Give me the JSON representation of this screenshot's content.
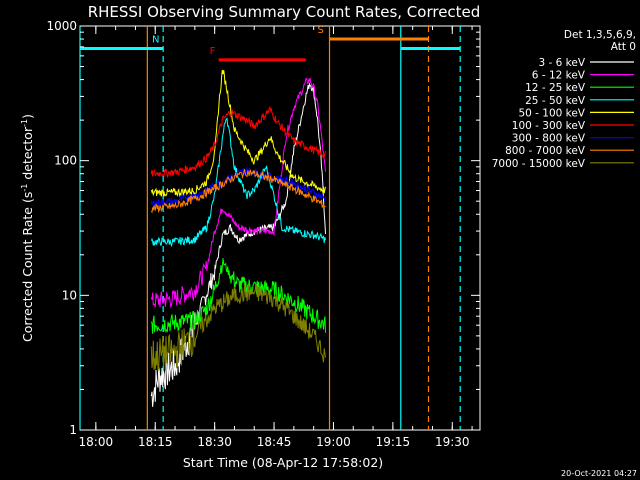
{
  "chart_data": {
    "type": "line",
    "title": "RHESSI Observing Summary Count Rates, Corrected",
    "xlabel": "Start Time (08-Apr-12 17:58:02)",
    "ylabel": "Corrected Count Rate (s⁻¹ detector⁻¹)",
    "ylabel_parts": {
      "main": "Corrected Count Rate (s",
      "sup1": "-1",
      "mid": " detector",
      "sup2": "-1",
      "end": ")"
    },
    "yscale": "log",
    "ylim": [
      1,
      1000
    ],
    "xlim": [
      "17:56:00",
      "19:37:00"
    ],
    "xticks": [
      "18:00",
      "18:15",
      "18:30",
      "18:45",
      "19:00",
      "19:15",
      "19:30"
    ],
    "yticks": [
      "1",
      "10",
      "100",
      "1000"
    ],
    "legend_header": [
      "Det 1,3,5,6,9,",
      "Att 0"
    ],
    "legend_placement": "top-right-outside",
    "series": [
      {
        "name": "3 - 6 keV",
        "color": "#ffffff",
        "x": [
          "18:14",
          "18:16",
          "18:20",
          "18:25",
          "18:30",
          "18:32",
          "18:34",
          "18:36",
          "18:40",
          "18:45",
          "18:48",
          "18:50",
          "18:52",
          "18:53",
          "18:54",
          "18:55",
          "18:56",
          "18:57",
          "18:58"
        ],
        "y": [
          1.8,
          2.5,
          3,
          6,
          15,
          28,
          32,
          26,
          30,
          32,
          50,
          120,
          220,
          300,
          380,
          330,
          200,
          90,
          30
        ]
      },
      {
        "name": "6 - 12 keV",
        "color": "#ff00ff",
        "x": [
          "18:14",
          "18:20",
          "18:25",
          "18:28",
          "18:30",
          "18:32",
          "18:34",
          "18:36",
          "18:40",
          "18:45",
          "18:48",
          "18:50",
          "18:52",
          "18:53",
          "18:54",
          "18:55",
          "18:56",
          "18:57",
          "18:58"
        ],
        "y": [
          9,
          9.5,
          11,
          16,
          30,
          45,
          38,
          32,
          30,
          30,
          150,
          250,
          330,
          380,
          400,
          350,
          260,
          150,
          80
        ]
      },
      {
        "name": "12 - 25 keV",
        "color": "#00ff00",
        "x": [
          "18:14",
          "18:25",
          "18:28",
          "18:30",
          "18:32",
          "18:34",
          "18:36",
          "18:40",
          "18:45",
          "18:50",
          "18:55",
          "18:58"
        ],
        "y": [
          6,
          6.5,
          8,
          11,
          18,
          14,
          12,
          11.5,
          11,
          9,
          7,
          6
        ]
      },
      {
        "name": "25 - 50 keV",
        "color": "#00ffff",
        "x": [
          "18:14",
          "18:20",
          "18:25",
          "18:28",
          "18:30",
          "18:32",
          "18:33",
          "18:35",
          "18:38",
          "18:40",
          "18:43",
          "18:45",
          "18:47",
          "18:50",
          "18:55",
          "18:58"
        ],
        "y": [
          25,
          25,
          26,
          32,
          55,
          150,
          220,
          90,
          55,
          60,
          90,
          55,
          32,
          30,
          28,
          26
        ]
      },
      {
        "name": "50 - 100 keV",
        "color": "#ffff00",
        "x": [
          "18:14",
          "18:20",
          "18:25",
          "18:28",
          "18:30",
          "18:31",
          "18:32",
          "18:33",
          "18:35",
          "18:38",
          "18:40",
          "18:42",
          "18:44",
          "18:46",
          "18:50",
          "18:55",
          "18:58"
        ],
        "y": [
          58,
          58,
          60,
          70,
          110,
          250,
          480,
          350,
          170,
          120,
          100,
          120,
          150,
          110,
          75,
          65,
          60
        ]
      },
      {
        "name": "100 - 300 keV",
        "color": "#ff0000",
        "x": [
          "18:14",
          "18:20",
          "18:25",
          "18:28",
          "18:30",
          "18:32",
          "18:34",
          "18:38",
          "18:40",
          "18:44",
          "18:46",
          "18:50",
          "18:55",
          "18:58"
        ],
        "y": [
          80,
          82,
          90,
          105,
          130,
          200,
          230,
          200,
          180,
          240,
          190,
          140,
          120,
          110
        ]
      },
      {
        "name": "300 - 800 keV",
        "color": "#0000ff",
        "x": [
          "18:14",
          "18:20",
          "18:25",
          "18:30",
          "18:35",
          "18:38",
          "18:40",
          "18:45",
          "18:50",
          "18:55",
          "18:58"
        ],
        "y": [
          48,
          50,
          55,
          65,
          78,
          85,
          82,
          75,
          68,
          58,
          52
        ]
      },
      {
        "name": "800 - 7000 keV",
        "color": "#ff8000",
        "x": [
          "18:14",
          "18:20",
          "18:25",
          "18:30",
          "18:35",
          "18:38",
          "18:40",
          "18:45",
          "18:50",
          "18:55",
          "18:58"
        ],
        "y": [
          44,
          46,
          52,
          62,
          76,
          82,
          80,
          72,
          62,
          52,
          46
        ]
      },
      {
        "name": "7000 - 15000 keV",
        "color": "#808000",
        "x": [
          "18:14",
          "18:20",
          "18:25",
          "18:30",
          "18:35",
          "18:40",
          "18:45",
          "18:50",
          "18:55",
          "18:58"
        ],
        "y": [
          3.5,
          3.8,
          5,
          8,
          10,
          10.5,
          9.5,
          7,
          5,
          3.5
        ]
      }
    ],
    "annotations": [
      {
        "label": "F",
        "color": "#ff0000",
        "kind": "flare-bar",
        "x_start": "18:31",
        "x_end": "18:53",
        "y": 560
      },
      {
        "label": "N",
        "color": "#00ffff",
        "kind": "night-bar",
        "x_start": "17:56",
        "x_end": "18:17",
        "y": 680
      },
      {
        "label": "",
        "color": "#00ffff",
        "kind": "night-bar",
        "x_start": "19:17",
        "x_end": "19:32",
        "y": 680
      },
      {
        "label": "S",
        "color": "#ff8000",
        "kind": "saa-bar",
        "x_start": "18:59",
        "x_end": "19:24",
        "y": 800
      }
    ],
    "vlines": [
      {
        "x": "17:56",
        "color": "#00ffff",
        "style": "solid"
      },
      {
        "x": "18:17",
        "color": "#00ffff",
        "style": "dashed"
      },
      {
        "x": "18:13",
        "color": "#ff8000",
        "style": "solid"
      },
      {
        "x": "18:59",
        "color": "#ff8000",
        "style": "solid"
      },
      {
        "x": "19:17",
        "color": "#00ffff",
        "style": "solid"
      },
      {
        "x": "19:24",
        "color": "#ff8000",
        "style": "dashed"
      },
      {
        "x": "19:32",
        "color": "#00ffff",
        "style": "dashed"
      }
    ],
    "grid": false,
    "footer": "20-Oct-2021 04:27"
  }
}
